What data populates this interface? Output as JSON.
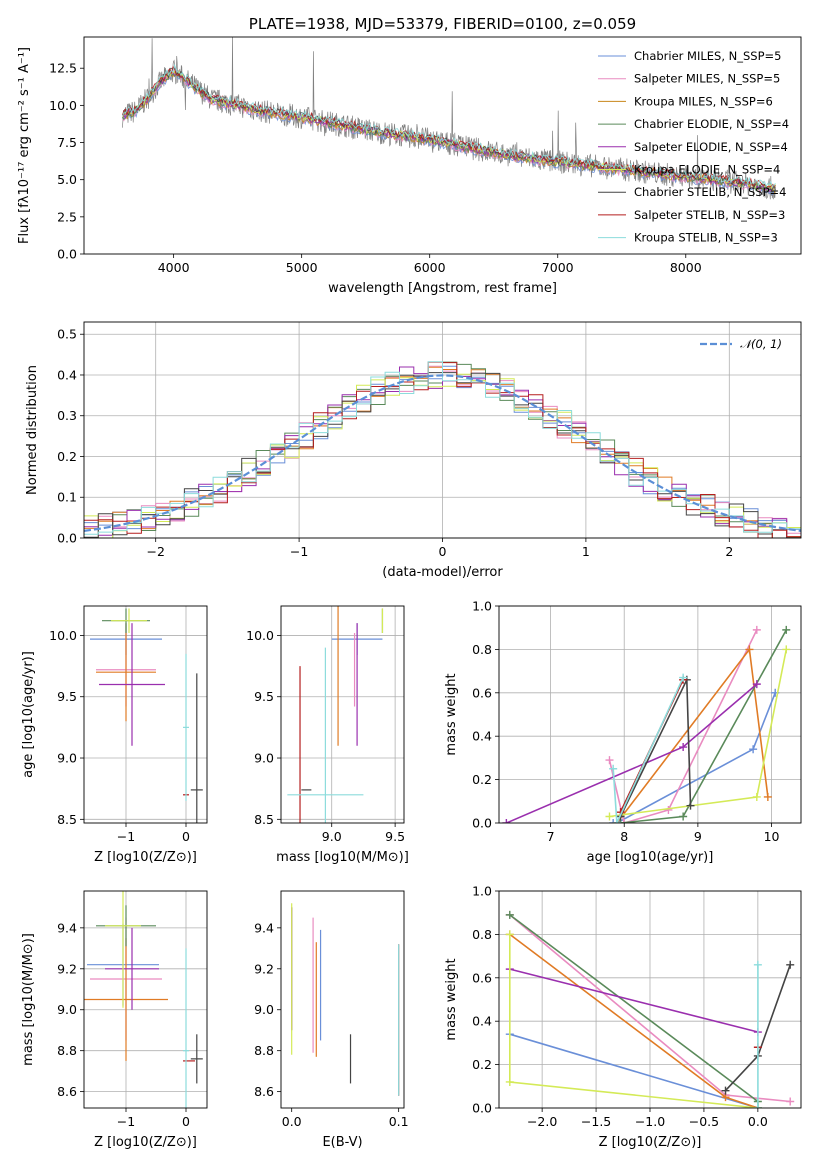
{
  "chart_data": [
    {
      "type": "line",
      "title": "PLATE=1938, MJD=53379, FIBERID=0100, z=0.059",
      "xlabel": "wavelength [Angstrom, rest frame]",
      "ylabel": "Flux [fλ10⁻¹⁷ erg cm⁻² s⁻¹ A⁻¹]",
      "xlim": [
        3300,
        8900
      ],
      "ylim": [
        0,
        14.6
      ],
      "xticks": [
        4000,
        5000,
        6000,
        7000,
        8000
      ],
      "yticks": [
        0.0,
        2.5,
        5.0,
        7.5,
        10.0,
        12.5
      ],
      "grid": false,
      "legend_position": "top-right",
      "data_series_color": "#808080",
      "data_continuum": {
        "x": [
          3600,
          3700,
          3800,
          3900,
          4000,
          4100,
          4200,
          4300,
          4500,
          4700,
          5000,
          5300,
          5600,
          6000,
          6400,
          6800,
          7200,
          7600,
          8000,
          8400,
          8700
        ],
        "y": [
          9.3,
          9.6,
          10.5,
          11.6,
          12.3,
          11.7,
          11.0,
          10.4,
          10.0,
          9.6,
          9.2,
          8.7,
          8.2,
          7.7,
          7.0,
          6.4,
          6.0,
          5.6,
          5.2,
          4.8,
          4.4
        ]
      },
      "series": [
        {
          "name": "Chabrier MILES, N_SSP=5",
          "color": "#6a8fd8"
        },
        {
          "name": "Salpeter MILES, N_SSP=5",
          "color": "#e98bc0"
        },
        {
          "name": "Kroupa MILES, N_SSP=6",
          "color": "#c8861a"
        },
        {
          "name": "Chabrier ELODIE, N_SSP=4",
          "color": "#5a8a5a"
        },
        {
          "name": "Salpeter ELODIE, N_SSP=4",
          "color": "#9a2fae"
        },
        {
          "name": "Kroupa ELODIE, N_SSP=4",
          "color": "#d4ea57"
        },
        {
          "name": "Chabrier STELIB, N_SSP=4",
          "color": "#444444"
        },
        {
          "name": "Salpeter STELIB, N_SSP=3",
          "color": "#b51f1f"
        },
        {
          "name": "Kroupa STELIB, N_SSP=3",
          "color": "#8cdcdc"
        }
      ]
    },
    {
      "type": "histogram",
      "xlabel": "(data-model)/error",
      "ylabel": "Normed distribution",
      "xlim": [
        -2.5,
        2.5
      ],
      "ylim": [
        0,
        0.53
      ],
      "xticks": [
        -2,
        -1,
        0,
        1,
        2
      ],
      "yticks": [
        0.0,
        0.1,
        0.2,
        0.3,
        0.4,
        0.5
      ],
      "grid": true,
      "legend": "𝒩(0, 1)",
      "legend_position": "top-right",
      "gaussian": {
        "mean": 0,
        "sigma": 1,
        "color": "#5b8fd6"
      },
      "bin_width": 0.1,
      "series_colors": [
        "#6a8fd8",
        "#e98bc0",
        "#e07b25",
        "#5a8a5a",
        "#9a2fae",
        "#d4ea57",
        "#444444",
        "#b51f1f",
        "#8cdcdc"
      ]
    },
    {
      "type": "errorbar",
      "xlabel": "Z [log10(Z/Z⊙)]",
      "ylabel": "age  [log10(age/yr)]",
      "xlim": [
        -1.7,
        0.35
      ],
      "ylim": [
        8.47,
        10.24
      ],
      "xticks": [
        -1,
        0
      ],
      "yticks": [
        8.5,
        9.0,
        9.5,
        10.0
      ],
      "grid": true,
      "points": [
        {
          "x": -1.0,
          "xerr": 0.6,
          "y": 9.97,
          "yerr": 0.13,
          "color": "#6a8fd8"
        },
        {
          "x": -1.0,
          "xerr": 0.5,
          "y": 9.72,
          "yerr": 0.3,
          "color": "#e98bc0"
        },
        {
          "x": -1.0,
          "xerr": 0.5,
          "y": 9.7,
          "yerr": 0.4,
          "color": "#e07b25"
        },
        {
          "x": -1.0,
          "xerr": 0.4,
          "y": 10.12,
          "yerr": 0.1,
          "color": "#5a8a5a"
        },
        {
          "x": -0.9,
          "xerr": 0.55,
          "y": 9.6,
          "yerr": 0.5,
          "color": "#9a2fae"
        },
        {
          "x": -0.95,
          "xerr": 0.3,
          "y": 10.12,
          "yerr": 0.1,
          "color": "#d4ea57"
        },
        {
          "x": 0.18,
          "xerr": 0.1,
          "y": 8.74,
          "yerr": 0.95,
          "color": "#444444"
        },
        {
          "x": 0.0,
          "xerr": 0.05,
          "y": 8.7,
          "yerr": 0.0,
          "color": "#b51f1f"
        },
        {
          "x": 0.0,
          "xerr": 0.05,
          "y": 9.25,
          "yerr": 0.6,
          "color": "#8cdcdc"
        }
      ]
    },
    {
      "type": "errorbar",
      "xlabel": "mass [log10(M/M⊙)]",
      "xlim": [
        8.6,
        9.57
      ],
      "ylim": [
        8.47,
        10.24
      ],
      "xticks": [
        9.0,
        9.5
      ],
      "yticks": [
        8.5,
        9.0,
        9.5,
        10.0
      ],
      "grid": true,
      "points": [
        {
          "x": 9.2,
          "xerr": 0.2,
          "y": 9.97,
          "yerr": 0.13,
          "color": "#6a8fd8"
        },
        {
          "x": 9.18,
          "xerr": 0.0,
          "y": 9.72,
          "yerr": 0.3,
          "color": "#e98bc0"
        },
        {
          "x": 9.05,
          "xerr": 0.0,
          "y": 9.7,
          "yerr": 0.6,
          "color": "#e07b25"
        },
        {
          "x": 9.4,
          "xerr": 0.0,
          "y": 10.12,
          "yerr": 0.1,
          "color": "#5a8a5a"
        },
        {
          "x": 9.2,
          "xerr": 0.0,
          "y": 9.6,
          "yerr": 0.5,
          "color": "#9a2fae"
        },
        {
          "x": 9.4,
          "xerr": 0.0,
          "y": 10.12,
          "yerr": 0.1,
          "color": "#d4ea57"
        },
        {
          "x": 8.8,
          "xerr": 0.0,
          "y": 8.74,
          "yerr": 0.0,
          "color": "#444444"
        },
        {
          "x": 8.75,
          "xerr": 0.0,
          "y": 8.7,
          "yerr": 1.05,
          "color": "#b51f1f"
        },
        {
          "x": 8.95,
          "xerr": 0.3,
          "y": 8.7,
          "yerr": 1.2,
          "color": "#8cdcdc"
        }
      ]
    },
    {
      "type": "line",
      "xlabel": "age  [log10(age/yr)]",
      "ylabel": "mass weight",
      "xlim": [
        6.3,
        10.4
      ],
      "ylim": [
        0,
        1.0
      ],
      "xticks": [
        7,
        8,
        9,
        10
      ],
      "yticks": [
        0.0,
        0.2,
        0.4,
        0.6,
        0.8,
        1.0
      ],
      "grid": true,
      "series": [
        {
          "color": "#6a8fd8",
          "x": [
            7.85,
            7.9,
            9.75,
            10.05
          ],
          "y": [
            0.0,
            0.0,
            0.34,
            0.6
          ]
        },
        {
          "color": "#e98bc0",
          "x": [
            7.8,
            8.0,
            8.6,
            9.8
          ],
          "y": [
            0.29,
            0.0,
            0.06,
            0.89
          ]
        },
        {
          "color": "#e07b25",
          "x": [
            7.9,
            9.7,
            9.95
          ],
          "y": [
            0.0,
            0.8,
            0.12
          ]
        },
        {
          "color": "#5a8a5a",
          "x": [
            7.95,
            8.8,
            10.2
          ],
          "y": [
            0.0,
            0.03,
            0.89
          ]
        },
        {
          "color": "#9a2fae",
          "x": [
            6.4,
            8.8,
            9.8
          ],
          "y": [
            0.0,
            0.35,
            0.64
          ]
        },
        {
          "color": "#d4ea57",
          "x": [
            7.8,
            9.8,
            10.2
          ],
          "y": [
            0.03,
            0.12,
            0.8
          ]
        },
        {
          "color": "#444444",
          "x": [
            7.95,
            8.85,
            8.9
          ],
          "y": [
            0.03,
            0.66,
            0.08
          ]
        },
        {
          "color": "#b51f1f",
          "x": [
            7.95,
            8.8
          ],
          "y": [
            0.05,
            0.66
          ]
        },
        {
          "color": "#8cdcdc",
          "x": [
            7.85,
            7.9,
            8.8
          ],
          "y": [
            0.25,
            0.0,
            0.67
          ]
        }
      ]
    },
    {
      "type": "errorbar",
      "xlabel": "Z [log10(Z/Z⊙)]",
      "ylabel": "mass [log10(M/M⊙)]",
      "xlim": [
        -1.7,
        0.35
      ],
      "ylim": [
        8.52,
        9.58
      ],
      "xticks": [
        -1,
        0
      ],
      "yticks": [
        8.6,
        8.8,
        9.0,
        9.2,
        9.4
      ],
      "grid": true,
      "points": [
        {
          "x": -1.05,
          "xerr": 0.6,
          "y": 9.22,
          "yerr": 0.2,
          "color": "#6a8fd8"
        },
        {
          "x": -1.0,
          "xerr": 0.6,
          "y": 9.15,
          "yerr": 0.3,
          "color": "#e98bc0"
        },
        {
          "x": -1.0,
          "xerr": 0.7,
          "y": 9.05,
          "yerr": 0.3,
          "color": "#e07b25"
        },
        {
          "x": -1.0,
          "xerr": 0.5,
          "y": 9.41,
          "yerr": 0.1,
          "color": "#5a8a5a"
        },
        {
          "x": -0.9,
          "xerr": 0.45,
          "y": 9.2,
          "yerr": 0.2,
          "color": "#9a2fae"
        },
        {
          "x": -1.05,
          "xerr": 0.3,
          "y": 9.41,
          "yerr": 0.4,
          "color": "#d4ea57"
        },
        {
          "x": 0.18,
          "xerr": 0.1,
          "y": 8.76,
          "yerr": 0.12,
          "color": "#444444"
        },
        {
          "x": 0.05,
          "xerr": 0.1,
          "y": 8.75,
          "yerr": 0.0,
          "color": "#b51f1f"
        },
        {
          "x": 0.0,
          "xerr": 0.05,
          "y": 8.8,
          "yerr": 0.5,
          "color": "#8cdcdc"
        }
      ]
    },
    {
      "type": "errorbar",
      "xlabel": "E(B-V)",
      "xlim": [
        -0.01,
        0.105
      ],
      "ylim": [
        8.52,
        9.58
      ],
      "xticks": [
        0.0,
        0.1
      ],
      "yticks": [
        8.6,
        8.8,
        9.0,
        9.2,
        9.4
      ],
      "grid": false,
      "points": [
        {
          "x": 0.027,
          "y": 9.12,
          "yerr": 0.27,
          "color": "#6a8fd8"
        },
        {
          "x": 0.02,
          "y": 9.12,
          "yerr": 0.33,
          "color": "#e98bc0"
        },
        {
          "x": 0.023,
          "y": 9.05,
          "yerr": 0.28,
          "color": "#e07b25"
        },
        {
          "x": 0.0,
          "y": 9.2,
          "yerr": 0.3,
          "color": "#5a8a5a"
        },
        {
          "x": 0.0,
          "y": 9.2,
          "yerr": 0.3,
          "color": "#9a2fae"
        },
        {
          "x": 0.0,
          "y": 9.15,
          "yerr": 0.37,
          "color": "#d4ea57"
        },
        {
          "x": 0.055,
          "y": 8.76,
          "yerr": 0.12,
          "color": "#444444"
        },
        {
          "x": 0.1,
          "y": 8.95,
          "yerr": 0.37,
          "color": "#b51f1f"
        },
        {
          "x": 0.1,
          "y": 8.95,
          "yerr": 0.37,
          "color": "#8cdcdc"
        }
      ]
    },
    {
      "type": "line",
      "xlabel": "Z [log10(Z/Z⊙)]",
      "ylabel": "mass weight",
      "xlim": [
        -2.4,
        0.4
      ],
      "ylim": [
        0,
        1.0
      ],
      "xticks": [
        -2.0,
        -1.5,
        -1.0,
        -0.5,
        0.0
      ],
      "yticks": [
        0.0,
        0.2,
        0.4,
        0.6,
        0.8,
        1.0
      ],
      "grid": true,
      "series": [
        {
          "color": "#6a8fd8",
          "x": [
            -2.3,
            0.0
          ],
          "y": [
            0.34,
            0.0
          ]
        },
        {
          "color": "#e98bc0",
          "x": [
            -2.3,
            -0.3,
            0.3
          ],
          "y": [
            0.89,
            0.06,
            0.03
          ]
        },
        {
          "color": "#e07b25",
          "x": [
            -2.3,
            -0.3,
            0.0
          ],
          "y": [
            0.8,
            0.05,
            0.0
          ]
        },
        {
          "color": "#5a8a5a",
          "x": [
            -2.3,
            0.0,
            0.0
          ],
          "y": [
            0.89,
            0.03,
            0.0
          ]
        },
        {
          "color": "#9a2fae",
          "x": [
            -2.3,
            0.0
          ],
          "y": [
            0.64,
            0.35
          ]
        },
        {
          "color": "#d4ea57",
          "x": [
            -2.3,
            -2.3,
            0.0
          ],
          "y": [
            0.8,
            0.12,
            0.0
          ]
        },
        {
          "color": "#444444",
          "x": [
            -0.3,
            0.0,
            0.3
          ],
          "y": [
            0.08,
            0.24,
            0.66
          ]
        },
        {
          "color": "#b51f1f",
          "x": [
            0.0
          ],
          "y": [
            0.28
          ]
        },
        {
          "color": "#8cdcdc",
          "x": [
            0.0,
            0.0
          ],
          "y": [
            0.66,
            0.0
          ]
        }
      ]
    }
  ]
}
